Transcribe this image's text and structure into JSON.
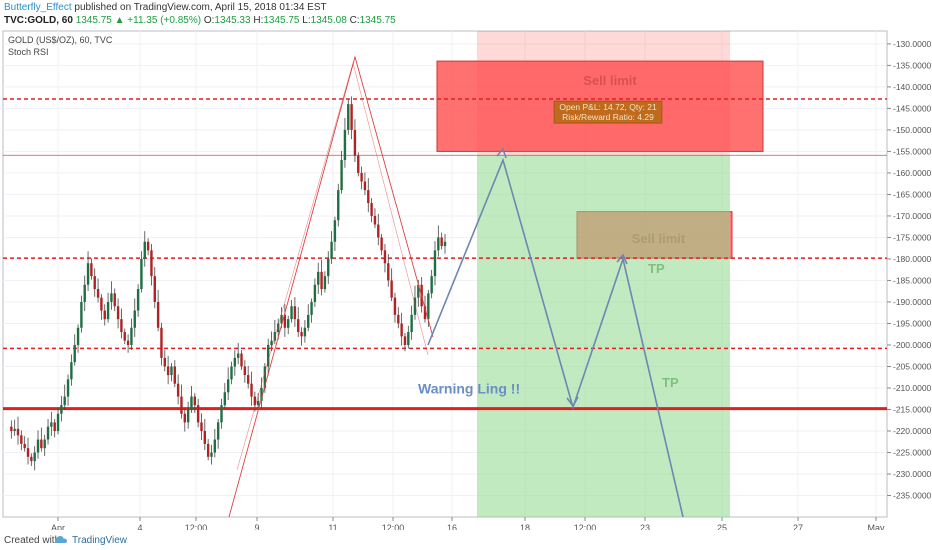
{
  "header": {
    "author": "Butterfly_Effect",
    "published": "published on TradingView.com, April 15, 2018 01:34 EST",
    "symbol": "TVC:GOLD, 60",
    "last": "1345.75",
    "change": "▲ +11.35 (+0.85%)",
    "ohlc": {
      "o_label": "O:",
      "o": "1345.33",
      "h_label": "H:",
      "h": "1345.75",
      "l_label": "L:",
      "l": "1345.08",
      "c_label": "C:",
      "c": "1345.75"
    }
  },
  "legend": {
    "line1": "GOLD (US$/OZ), 60, TVC",
    "line2": "Stoch RSI"
  },
  "footer": {
    "created_with": "Created with",
    "brand": "TradingView"
  },
  "colors": {
    "candle_up": "#1f6f45",
    "candle_down": "#b22222",
    "red_line": "#e02020",
    "projection": "#6f86b0",
    "zone_red": "#ff4d4d",
    "zone_green": "#8ed88e",
    "text_green": "#7fbf7f",
    "warning_blue": "#6b8ec5"
  },
  "chart_data": {
    "type": "candlestick",
    "title": "GOLD (US$/OZ), 60, TVC",
    "x_ticks": [
      "Apr",
      "4",
      "12:00",
      "9",
      "11",
      "12:00",
      "16",
      "18",
      "12:00",
      "23",
      "25",
      "27",
      "May"
    ],
    "y_ticks": [
      -130,
      -135,
      -140,
      -145,
      -150,
      -155,
      -160,
      -165,
      -170,
      -175,
      -180,
      -185,
      -190,
      -195,
      -200,
      -205,
      -210,
      -215,
      -220,
      -225,
      -230,
      -235
    ],
    "y_tick_labels": [
      "-130.0000",
      "-135.0000",
      "-140.0000",
      "-145.0000",
      "-150.0000",
      "-155.0000",
      "-160.0000",
      "-165.0000",
      "-170.0000",
      "-175.0000",
      "-180.0000",
      "-185.0000",
      "-190.0000",
      "-195.0000",
      "-200.0000",
      "-205.0000",
      "-210.0000",
      "-215.0000",
      "-220.0000",
      "-225.0000",
      "-230.0000",
      "-235.0000"
    ],
    "ylim": [
      -240,
      -127
    ],
    "horizontal_levels": [
      {
        "value": -142.8,
        "style": "dashed"
      },
      {
        "value": -155.9,
        "style": "solid-thin"
      },
      {
        "value": -179.8,
        "style": "dashed"
      },
      {
        "value": -200.8,
        "style": "dashed"
      },
      {
        "value": -214.8,
        "style": "solid-thick"
      }
    ],
    "price_path": [
      -219,
      -220,
      -219.5,
      -221,
      -223,
      -224,
      -226,
      -227,
      -225,
      -222,
      -224,
      -222,
      -219,
      -218,
      -220,
      -216,
      -214,
      -212,
      -208,
      -204,
      -200,
      -196,
      -190,
      -186,
      -181,
      -184,
      -187,
      -189,
      -192,
      -194,
      -190,
      -188,
      -191,
      -194,
      -197,
      -199,
      -200,
      -196,
      -192,
      -187,
      -180,
      -176,
      -178,
      -184,
      -190,
      -196,
      -203,
      -205,
      -207,
      -205,
      -209,
      -212,
      -216,
      -218,
      -215,
      -212,
      -214,
      -218,
      -220,
      -223,
      -226,
      -225,
      -222,
      -218,
      -214,
      -211,
      -208,
      -205,
      -203,
      -202,
      -205,
      -207,
      -209,
      -212,
      -214,
      -213,
      -210,
      -205,
      -200,
      -199,
      -197,
      -195,
      -193,
      -196,
      -194,
      -191,
      -194,
      -197,
      -198,
      -196,
      -193,
      -190,
      -186,
      -183,
      -187,
      -184,
      -180,
      -176,
      -171,
      -164,
      -157,
      -150,
      -144,
      -150,
      -156,
      -160,
      -162,
      -164,
      -167,
      -170,
      -172,
      -175,
      -178,
      -181,
      -185,
      -189,
      -193,
      -195,
      -198,
      -200,
      -197,
      -193,
      -189,
      -186,
      -191,
      -194,
      -188,
      -184,
      -178,
      -175,
      -177,
      -176
    ],
    "projection_path": [
      {
        "t": "Apr 15 12:00",
        "y": -200
      },
      {
        "t": "Apr 17",
        "y": -157
      },
      {
        "t": "Apr 19 18:00",
        "y": -214.5
      },
      {
        "t": "Apr 22",
        "y": -180
      },
      {
        "t": "Apr 24 00:00",
        "y": -240
      }
    ],
    "zones": [
      {
        "kind": "sell",
        "label": "Sell limit",
        "y_from": -134,
        "y_to": -155
      },
      {
        "kind": "sell",
        "label": "Sell limit",
        "y_from": -169,
        "y_to": -179.8
      },
      {
        "kind": "profit",
        "y_from": -127,
        "y_to": -240
      }
    ],
    "annotations": {
      "position_info": {
        "line1": "Open P&L: 14.72, Qty: 21",
        "line2": "Risk/Reward Ratio: 4.29"
      },
      "tp1": "TP",
      "tp2": "TP",
      "warning": "Warning Ling !!"
    }
  }
}
